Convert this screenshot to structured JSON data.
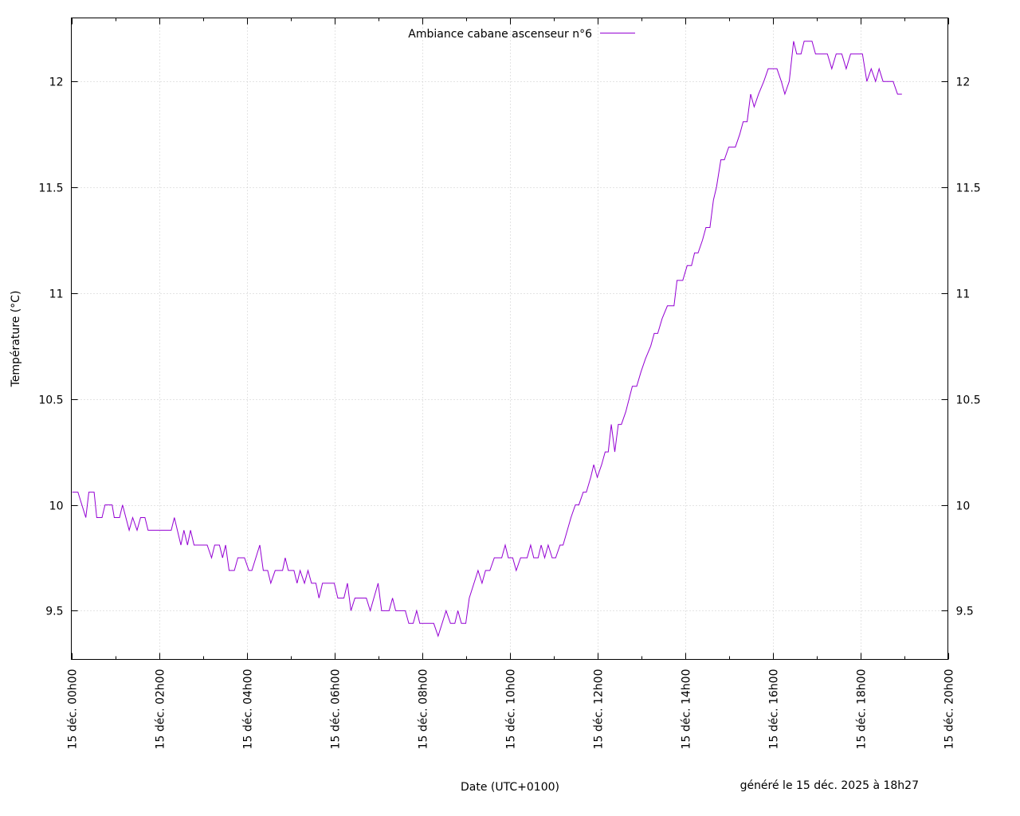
{
  "chart_data": {
    "type": "line",
    "title": "",
    "xlabel": "Date (UTC+0100)",
    "ylabel": "Température (°C)",
    "footer": "généré le 15 déc. 2025 à 18h27",
    "x_unit": "hours",
    "xlim": [
      0,
      20
    ],
    "ylim": [
      9.27,
      12.3
    ],
    "yticks": [
      9.5,
      10,
      10.5,
      11,
      11.5,
      12
    ],
    "ytick_labels": [
      "9.5",
      "10",
      "10.5",
      "11",
      "11.5",
      "12"
    ],
    "xticks": [
      0,
      2,
      4,
      6,
      8,
      10,
      12,
      14,
      16,
      18,
      20
    ],
    "xtick_labels": [
      "15 déc. 00h00",
      "15 déc. 02h00",
      "15 déc. 04h00",
      "15 déc. 06h00",
      "15 déc. 08h00",
      "15 déc. 10h00",
      "15 déc. 12h00",
      "15 déc. 14h00",
      "15 déc. 16h00",
      "15 déc. 18h00",
      "15 déc. 20h00"
    ],
    "grid": true,
    "legend_position": "top-center",
    "colors": {
      "series": "#9400d3",
      "grid": "#c8c8c8"
    },
    "series": [
      {
        "name": "Ambiance cabane ascenseur n°6",
        "points": [
          [
            0.02,
            10.06
          ],
          [
            0.15,
            10.06
          ],
          [
            0.33,
            9.94
          ],
          [
            0.4,
            10.06
          ],
          [
            0.52,
            10.06
          ],
          [
            0.58,
            9.94
          ],
          [
            0.7,
            9.94
          ],
          [
            0.77,
            10.0
          ],
          [
            0.93,
            10.0
          ],
          [
            0.98,
            9.94
          ],
          [
            1.1,
            9.94
          ],
          [
            1.17,
            10.0
          ],
          [
            1.32,
            9.88
          ],
          [
            1.4,
            9.94
          ],
          [
            1.5,
            9.88
          ],
          [
            1.58,
            9.94
          ],
          [
            1.68,
            9.94
          ],
          [
            1.75,
            9.88
          ],
          [
            2.28,
            9.88
          ],
          [
            2.35,
            9.94
          ],
          [
            2.5,
            9.81
          ],
          [
            2.57,
            9.88
          ],
          [
            2.65,
            9.81
          ],
          [
            2.72,
            9.88
          ],
          [
            2.8,
            9.81
          ],
          [
            3.1,
            9.81
          ],
          [
            3.2,
            9.75
          ],
          [
            3.27,
            9.81
          ],
          [
            3.38,
            9.81
          ],
          [
            3.45,
            9.75
          ],
          [
            3.52,
            9.81
          ],
          [
            3.6,
            9.69
          ],
          [
            3.72,
            9.69
          ],
          [
            3.8,
            9.75
          ],
          [
            3.95,
            9.75
          ],
          [
            4.05,
            9.69
          ],
          [
            4.12,
            9.69
          ],
          [
            4.3,
            9.81
          ],
          [
            4.38,
            9.69
          ],
          [
            4.48,
            9.69
          ],
          [
            4.55,
            9.63
          ],
          [
            4.65,
            9.69
          ],
          [
            4.82,
            9.69
          ],
          [
            4.88,
            9.75
          ],
          [
            4.95,
            9.69
          ],
          [
            5.08,
            9.69
          ],
          [
            5.15,
            9.63
          ],
          [
            5.22,
            9.69
          ],
          [
            5.32,
            9.63
          ],
          [
            5.4,
            9.69
          ],
          [
            5.48,
            9.63
          ],
          [
            5.58,
            9.63
          ],
          [
            5.65,
            9.56
          ],
          [
            5.73,
            9.63
          ],
          [
            6.0,
            9.63
          ],
          [
            6.08,
            9.56
          ],
          [
            6.22,
            9.56
          ],
          [
            6.3,
            9.63
          ],
          [
            6.38,
            9.5
          ],
          [
            6.47,
            9.56
          ],
          [
            6.73,
            9.56
          ],
          [
            6.82,
            9.5
          ],
          [
            7.0,
            9.63
          ],
          [
            7.08,
            9.5
          ],
          [
            7.25,
            9.5
          ],
          [
            7.33,
            9.56
          ],
          [
            7.4,
            9.5
          ],
          [
            7.62,
            9.5
          ],
          [
            7.7,
            9.44
          ],
          [
            7.8,
            9.44
          ],
          [
            7.88,
            9.5
          ],
          [
            7.95,
            9.44
          ],
          [
            8.27,
            9.44
          ],
          [
            8.37,
            9.38
          ],
          [
            8.55,
            9.5
          ],
          [
            8.65,
            9.44
          ],
          [
            8.75,
            9.44
          ],
          [
            8.82,
            9.5
          ],
          [
            8.9,
            9.44
          ],
          [
            9.0,
            9.44
          ],
          [
            9.08,
            9.56
          ],
          [
            9.28,
            9.69
          ],
          [
            9.37,
            9.63
          ],
          [
            9.45,
            9.69
          ],
          [
            9.55,
            9.69
          ],
          [
            9.65,
            9.75
          ],
          [
            9.82,
            9.75
          ],
          [
            9.9,
            9.81
          ],
          [
            9.97,
            9.75
          ],
          [
            10.07,
            9.75
          ],
          [
            10.15,
            9.69
          ],
          [
            10.25,
            9.75
          ],
          [
            10.4,
            9.75
          ],
          [
            10.48,
            9.81
          ],
          [
            10.55,
            9.75
          ],
          [
            10.65,
            9.75
          ],
          [
            10.72,
            9.81
          ],
          [
            10.8,
            9.75
          ],
          [
            10.88,
            9.81
          ],
          [
            10.97,
            9.75
          ],
          [
            11.05,
            9.75
          ],
          [
            11.15,
            9.81
          ],
          [
            11.22,
            9.81
          ],
          [
            11.4,
            9.94
          ],
          [
            11.5,
            10.0
          ],
          [
            11.58,
            10.0
          ],
          [
            11.68,
            10.06
          ],
          [
            11.75,
            10.06
          ],
          [
            11.85,
            10.13
          ],
          [
            11.92,
            10.19
          ],
          [
            12.0,
            10.13
          ],
          [
            12.1,
            10.19
          ],
          [
            12.18,
            10.25
          ],
          [
            12.25,
            10.25
          ],
          [
            12.32,
            10.38
          ],
          [
            12.4,
            10.25
          ],
          [
            12.48,
            10.38
          ],
          [
            12.55,
            10.38
          ],
          [
            12.65,
            10.44
          ],
          [
            12.8,
            10.56
          ],
          [
            12.9,
            10.56
          ],
          [
            13.0,
            10.63
          ],
          [
            13.1,
            10.69
          ],
          [
            13.22,
            10.75
          ],
          [
            13.3,
            10.81
          ],
          [
            13.38,
            10.81
          ],
          [
            13.48,
            10.88
          ],
          [
            13.6,
            10.94
          ],
          [
            13.75,
            10.94
          ],
          [
            13.82,
            11.06
          ],
          [
            13.95,
            11.06
          ],
          [
            14.05,
            11.13
          ],
          [
            14.15,
            11.13
          ],
          [
            14.22,
            11.19
          ],
          [
            14.3,
            11.19
          ],
          [
            14.4,
            11.25
          ],
          [
            14.48,
            11.31
          ],
          [
            14.57,
            11.31
          ],
          [
            14.65,
            11.44
          ],
          [
            14.72,
            11.5
          ],
          [
            14.82,
            11.63
          ],
          [
            14.9,
            11.63
          ],
          [
            15.0,
            11.69
          ],
          [
            15.15,
            11.69
          ],
          [
            15.25,
            11.75
          ],
          [
            15.33,
            11.81
          ],
          [
            15.42,
            11.81
          ],
          [
            15.5,
            11.94
          ],
          [
            15.58,
            11.88
          ],
          [
            15.68,
            11.94
          ],
          [
            15.8,
            12.0
          ],
          [
            15.9,
            12.06
          ],
          [
            16.1,
            12.06
          ],
          [
            16.2,
            12.0
          ],
          [
            16.28,
            11.94
          ],
          [
            16.38,
            12.0
          ],
          [
            16.48,
            12.19
          ],
          [
            16.55,
            12.13
          ],
          [
            16.65,
            12.13
          ],
          [
            16.72,
            12.19
          ],
          [
            16.9,
            12.19
          ],
          [
            16.98,
            12.13
          ],
          [
            17.25,
            12.13
          ],
          [
            17.35,
            12.06
          ],
          [
            17.45,
            12.13
          ],
          [
            17.58,
            12.13
          ],
          [
            17.68,
            12.06
          ],
          [
            17.78,
            12.13
          ],
          [
            18.05,
            12.13
          ],
          [
            18.15,
            12.0
          ],
          [
            18.25,
            12.06
          ],
          [
            18.35,
            12.0
          ],
          [
            18.43,
            12.06
          ],
          [
            18.52,
            12.0
          ],
          [
            18.75,
            12.0
          ],
          [
            18.85,
            11.94
          ],
          [
            18.95,
            11.94
          ]
        ]
      }
    ]
  }
}
